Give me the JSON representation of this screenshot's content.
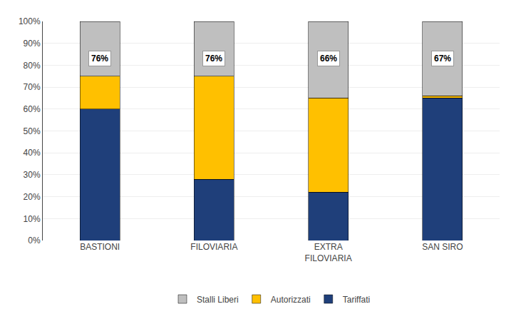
{
  "chart_data": {
    "type": "bar",
    "stacked": true,
    "categories": [
      "BASTIONI",
      "FILOVIARIA",
      "EXTRA\nFILOVIARIA",
      "SAN SIRO"
    ],
    "series": [
      {
        "name": "Tariffati",
        "color": "#1F3F7A",
        "values": [
          60,
          28,
          22,
          65
        ]
      },
      {
        "name": "Autorizzati",
        "color": "#FFC000",
        "values": [
          15,
          47,
          43,
          1
        ]
      },
      {
        "name": "Stalli Liberi",
        "color": "#BFBFBF",
        "values": [
          25,
          25,
          35,
          34
        ]
      }
    ],
    "annotations": [
      {
        "text": "76%",
        "x": "BASTIONI",
        "y": 83
      },
      {
        "text": "76%",
        "x": "FILOVIARIA",
        "y": 83
      },
      {
        "text": "66%",
        "x": "EXTRA\nFILOVIARIA",
        "y": 83
      },
      {
        "text": "67%",
        "x": "SAN SIRO",
        "y": 83
      }
    ],
    "ylim": [
      0,
      100
    ],
    "yticks": [
      {
        "value": 0,
        "label": "0%"
      },
      {
        "value": 10,
        "label": "10%"
      },
      {
        "value": 20,
        "label": "20%"
      },
      {
        "value": 30,
        "label": "30%"
      },
      {
        "value": 40,
        "label": "40%"
      },
      {
        "value": 50,
        "label": "50%"
      },
      {
        "value": 60,
        "label": "60%"
      },
      {
        "value": 70,
        "label": "70%"
      },
      {
        "value": 80,
        "label": "80%"
      },
      {
        "value": 90,
        "label": "90%"
      },
      {
        "value": 100,
        "label": "100%"
      }
    ],
    "grid": true,
    "legend": "bottom"
  }
}
